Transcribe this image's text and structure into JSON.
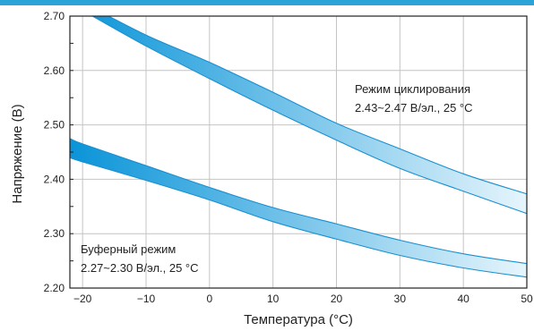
{
  "chart_data": {
    "type": "area",
    "xlabel": "Температура (°C)",
    "ylabel": "Напряжение (В)",
    "xlim": [
      -22,
      50
    ],
    "ylim": [
      2.2,
      2.7
    ],
    "x_ticks": [
      "−20",
      "−10",
      "0",
      "10",
      "20",
      "30",
      "40",
      "50"
    ],
    "x_tick_values": [
      -20,
      -10,
      0,
      10,
      20,
      30,
      40,
      50
    ],
    "y_ticks": [
      "2.20",
      "2.30",
      "2.40",
      "2.50",
      "2.60",
      "2.70"
    ],
    "y_tick_values": [
      2.2,
      2.3,
      2.4,
      2.5,
      2.6,
      2.7
    ],
    "grid": true,
    "series": [
      {
        "label_lines": [
          "Режим циклирования",
          "2.43~2.47 В/эл., 25 °C"
        ],
        "x": [
          -22,
          -20,
          -10,
          0,
          10,
          20,
          30,
          40,
          50
        ],
        "upper": [
          2.735,
          2.725,
          2.665,
          2.615,
          2.56,
          2.503,
          2.456,
          2.41,
          2.373
        ],
        "lower": [
          2.72,
          2.71,
          2.645,
          2.585,
          2.527,
          2.472,
          2.42,
          2.378,
          2.337
        ]
      },
      {
        "label_lines": [
          "Буферный режим",
          "2.27~2.30 В/эл., 25 °C"
        ],
        "x": [
          -22,
          -20,
          -10,
          0,
          10,
          20,
          30,
          40,
          50
        ],
        "upper": [
          2.475,
          2.465,
          2.425,
          2.385,
          2.348,
          2.318,
          2.288,
          2.263,
          2.245
        ],
        "lower": [
          2.44,
          2.432,
          2.398,
          2.362,
          2.322,
          2.29,
          2.26,
          2.237,
          2.22
        ]
      }
    ],
    "colors": {
      "top_bar": "#2ba3d9",
      "band_start": "#0a94d8",
      "band_end": "#e6f5fc",
      "band_edge": "#1a8fd0",
      "grid": "#c4c4c4",
      "frame": "#222222"
    }
  }
}
